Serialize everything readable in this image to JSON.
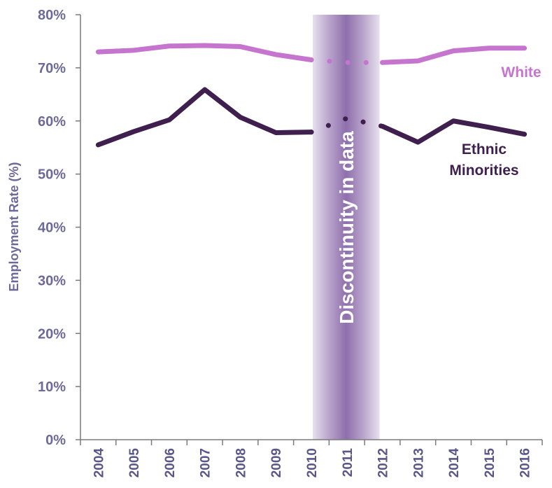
{
  "chart_data": {
    "type": "line",
    "x": [
      "2004",
      "2005",
      "2006",
      "2007",
      "2008",
      "2009",
      "2010",
      "2011",
      "2012",
      "2013",
      "2014",
      "2015",
      "2016"
    ],
    "ylabel": "Employment Rate (%)",
    "ylim": [
      0,
      80
    ],
    "yticks": [
      "0%",
      "10%",
      "20%",
      "30%",
      "40%",
      "50%",
      "60%",
      "70%",
      "80%"
    ],
    "grid": false,
    "series": [
      {
        "name": "White",
        "color": "#c675cf",
        "values": [
          73.0,
          73.3,
          74.1,
          74.2,
          74.0,
          72.5,
          71.5,
          71.0,
          71.0,
          71.3,
          73.2,
          73.7,
          73.7
        ],
        "dotted_between": [
          "2010",
          "2012"
        ]
      },
      {
        "name": "Ethnic Minorities",
        "label_lines": [
          "Ethnic",
          "Minorities"
        ],
        "color": "#3f1f4e",
        "values": [
          55.5,
          58.0,
          60.2,
          65.9,
          60.7,
          57.8,
          57.9,
          60.5,
          59.0,
          56.0,
          60.0,
          58.8,
          57.5
        ],
        "dotted_between": [
          "2010",
          "2012"
        ]
      }
    ],
    "annotations": [
      {
        "text": "Discontinuity in data",
        "x_range": [
          "2010",
          "2012"
        ]
      }
    ]
  }
}
